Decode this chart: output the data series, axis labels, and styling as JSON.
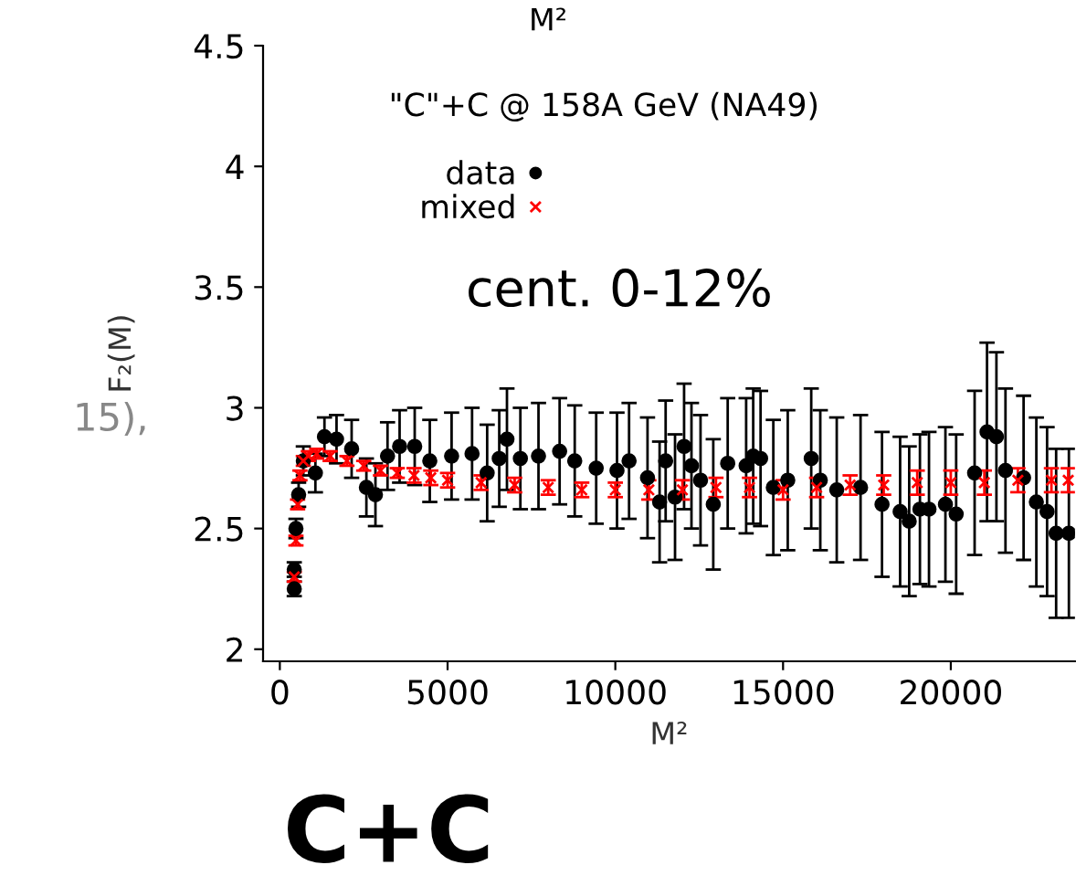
{
  "chart_data": {
    "type": "scatter",
    "title": "\"C\"+C @ 158A GeV (NA49)",
    "xlabel": "M²",
    "ylabel": "F₂(M)",
    "xlim": [
      -500,
      23700
    ],
    "ylim": [
      1.95,
      4.5
    ],
    "xticks": [
      0,
      5000,
      10000,
      15000,
      20000
    ],
    "yticks": [
      2,
      2.5,
      3,
      3.5,
      4,
      4.5
    ],
    "grid": false,
    "legend": "top",
    "annotations": [
      "cent. 0-12%",
      "M²",
      "15),",
      "C+C"
    ],
    "series": [
      {
        "name": "data",
        "color": "#000000",
        "marker": "circle",
        "x": [
          430,
          430,
          480,
          560,
          700,
          1060,
          1330,
          1690,
          2140,
          2580,
          2850,
          3210,
          3570,
          4020,
          4470,
          5120,
          5730,
          6180,
          6540,
          6770,
          7170,
          7710,
          8340,
          8790,
          9430,
          10050,
          10410,
          10960,
          11320,
          11500,
          11780,
          12050,
          12270,
          12540,
          12920,
          13350,
          13900,
          14110,
          14330,
          14710,
          15140,
          15840,
          16110,
          16600,
          17310,
          17950,
          18490,
          18760,
          19080,
          19350,
          19840,
          20160,
          20710,
          21080,
          21360,
          21630,
          22170,
          22550,
          22870,
          23140,
          23520
        ],
        "values": [
          2.25,
          2.33,
          2.5,
          2.64,
          2.78,
          2.73,
          2.88,
          2.87,
          2.83,
          2.67,
          2.64,
          2.8,
          2.84,
          2.84,
          2.78,
          2.8,
          2.81,
          2.73,
          2.79,
          2.87,
          2.79,
          2.8,
          2.82,
          2.78,
          2.75,
          2.74,
          2.78,
          2.71,
          2.61,
          2.78,
          2.63,
          2.84,
          2.76,
          2.7,
          2.6,
          2.77,
          2.76,
          2.8,
          2.79,
          2.67,
          2.7,
          2.79,
          2.7,
          2.66,
          2.67,
          2.6,
          2.57,
          2.53,
          2.58,
          2.58,
          2.6,
          2.56,
          2.73,
          2.9,
          2.88,
          2.74,
          2.71,
          2.61,
          2.57,
          2.48,
          2.48
        ],
        "errors": [
          0.03,
          0.03,
          0.04,
          0.05,
          0.06,
          0.08,
          0.08,
          0.1,
          0.12,
          0.12,
          0.13,
          0.14,
          0.15,
          0.16,
          0.17,
          0.18,
          0.19,
          0.2,
          0.2,
          0.21,
          0.21,
          0.22,
          0.22,
          0.23,
          0.23,
          0.24,
          0.24,
          0.25,
          0.25,
          0.25,
          0.26,
          0.26,
          0.26,
          0.27,
          0.27,
          0.27,
          0.28,
          0.28,
          0.28,
          0.28,
          0.29,
          0.29,
          0.29,
          0.3,
          0.3,
          0.3,
          0.31,
          0.31,
          0.31,
          0.32,
          0.32,
          0.33,
          0.34,
          0.37,
          0.35,
          0.34,
          0.34,
          0.35,
          0.35,
          0.35,
          0.35
        ]
      },
      {
        "name": "mixed",
        "color": "#ff0000",
        "marker": "cross",
        "x": [
          430,
          480,
          530,
          600,
          700,
          850,
          1100,
          1500,
          2000,
          2500,
          3000,
          3500,
          4000,
          4500,
          5000,
          6000,
          7000,
          8000,
          9000,
          10000,
          11000,
          12000,
          13000,
          14000,
          15000,
          16000,
          17000,
          18000,
          19000,
          20000,
          21000,
          22000,
          23000,
          23500
        ],
        "values": [
          2.3,
          2.45,
          2.6,
          2.72,
          2.78,
          2.8,
          2.81,
          2.8,
          2.78,
          2.76,
          2.74,
          2.73,
          2.72,
          2.71,
          2.7,
          2.69,
          2.68,
          2.67,
          2.66,
          2.66,
          2.66,
          2.66,
          2.67,
          2.67,
          2.66,
          2.67,
          2.68,
          2.68,
          2.69,
          2.69,
          2.69,
          2.7,
          2.7,
          2.7
        ],
        "errors": [
          0.02,
          0.02,
          0.02,
          0.02,
          0.02,
          0.02,
          0.02,
          0.02,
          0.02,
          0.02,
          0.02,
          0.02,
          0.03,
          0.03,
          0.03,
          0.03,
          0.03,
          0.03,
          0.03,
          0.03,
          0.04,
          0.04,
          0.04,
          0.04,
          0.04,
          0.04,
          0.04,
          0.04,
          0.05,
          0.05,
          0.05,
          0.05,
          0.05,
          0.05
        ]
      }
    ]
  }
}
